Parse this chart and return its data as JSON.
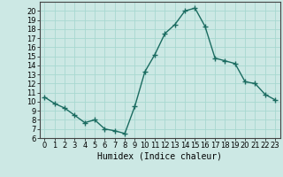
{
  "x": [
    0,
    1,
    2,
    3,
    4,
    5,
    6,
    7,
    8,
    9,
    10,
    11,
    12,
    13,
    14,
    15,
    16,
    17,
    18,
    19,
    20,
    21,
    22,
    23
  ],
  "y": [
    10.5,
    9.8,
    9.3,
    8.5,
    7.7,
    8.0,
    7.0,
    6.8,
    6.5,
    9.5,
    13.3,
    15.2,
    17.5,
    18.5,
    20.0,
    20.3,
    18.3,
    14.8,
    14.5,
    14.2,
    12.2,
    12.0,
    10.8,
    10.2
  ],
  "line_color": "#1a6b60",
  "marker": "+",
  "marker_size": 4,
  "linewidth": 1.0,
  "xlabel": "Humidex (Indice chaleur)",
  "xlabel_fontsize": 7,
  "xlim": [
    -0.5,
    23.5
  ],
  "ylim": [
    6,
    21
  ],
  "yticks": [
    6,
    7,
    8,
    9,
    10,
    11,
    12,
    13,
    14,
    15,
    16,
    17,
    18,
    19,
    20
  ],
  "xticks": [
    0,
    1,
    2,
    3,
    4,
    5,
    6,
    7,
    8,
    9,
    10,
    11,
    12,
    13,
    14,
    15,
    16,
    17,
    18,
    19,
    20,
    21,
    22,
    23
  ],
  "tick_fontsize": 6,
  "grid_color": "#a8d8d0",
  "background_color": "#cce8e4",
  "spine_color": "#444444"
}
